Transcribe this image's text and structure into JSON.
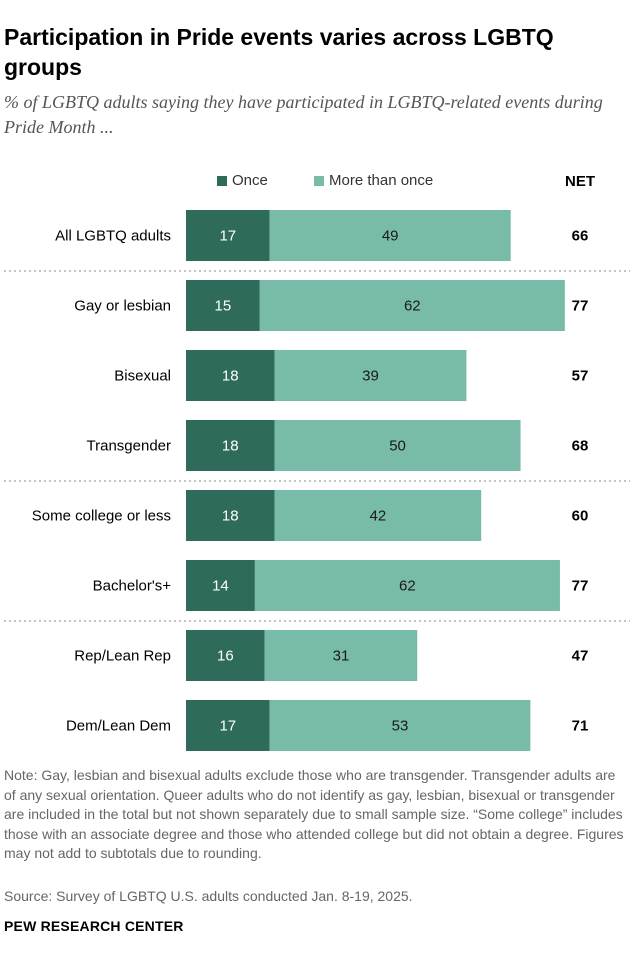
{
  "title": "Participation in Pride events varies across LGBTQ groups",
  "subtitle": "% of LGBTQ adults saying they have participated in LGBTQ-related events during Pride Month ...",
  "colors": {
    "once": "#2f6b5b",
    "more": "#78bba8",
    "divider": "#888888"
  },
  "chart_data": {
    "type": "bar",
    "orientation": "horizontal",
    "stacked": true,
    "title": "Participation in Pride events varies across LGBTQ groups",
    "categories": [
      "All LGBTQ adults",
      "Gay or lesbian",
      "Bisexual",
      "Transgender",
      "Some college or less",
      "Bachelor's+",
      "Rep/Lean Rep",
      "Dem/Lean Dem"
    ],
    "series": [
      {
        "name": "Once",
        "values": [
          17,
          15,
          18,
          18,
          18,
          14,
          16,
          17
        ]
      },
      {
        "name": "More than once",
        "values": [
          49,
          62,
          39,
          50,
          42,
          62,
          31,
          53
        ]
      }
    ],
    "net_label": "NET",
    "net": [
      66,
      77,
      57,
      68,
      60,
      77,
      47,
      71
    ],
    "group_breaks_after": [
      0,
      3,
      5
    ],
    "xlim": [
      0,
      100
    ]
  },
  "note": "Note: Gay, lesbian and bisexual adults exclude those who are transgender. Transgender adults are of any sexual orientation. Queer adults who do not identify as gay, lesbian, bisexual or transgender are included in the total but not shown separately due to small sample size. “Some college” includes those with an associate degree and those who attended college but did not obtain a degree. Figures may not add to subtotals due to rounding.",
  "source": "Source: Survey of LGBTQ U.S. adults conducted Jan. 8-19, 2025.",
  "footer": "PEW RESEARCH CENTER"
}
